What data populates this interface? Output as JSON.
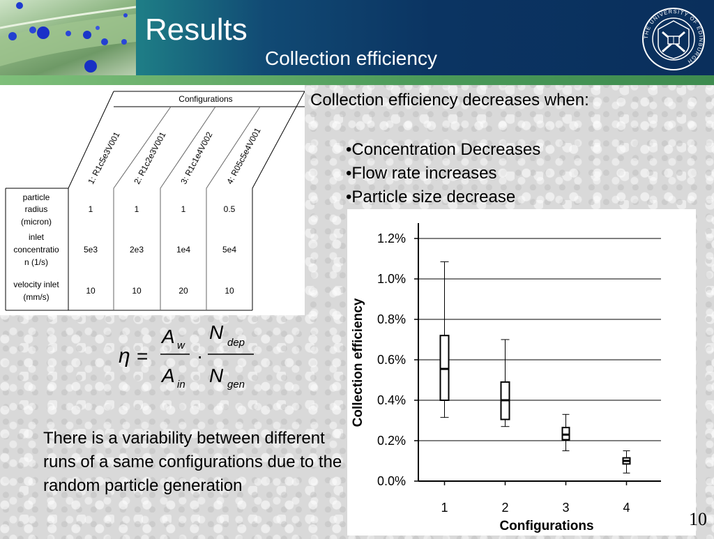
{
  "header": {
    "title": "Results",
    "subtitle": "Collection efficiency",
    "logo_text": "THE UNIVERSITY OF EDINBURGH"
  },
  "table": {
    "group_header": "Configurations",
    "columns": [
      "1: R1c5e3V001",
      "2: R1c2e3V001",
      "3: R1c1e4V002",
      "4: R05c5e4V001"
    ],
    "rows": [
      {
        "label_lines": [
          "particle",
          "radius",
          "(micron)"
        ],
        "values": [
          "1",
          "1",
          "1",
          "0.5"
        ]
      },
      {
        "label_lines": [
          "inlet",
          "concentratio",
          "n (1/s)"
        ],
        "values": [
          "5e3",
          "2e3",
          "1e4",
          "5e4"
        ]
      },
      {
        "label_lines": [
          "velocity inlet",
          "(mm/s)"
        ],
        "values": [
          "10",
          "10",
          "20",
          "10"
        ]
      }
    ]
  },
  "formula": {
    "eta": "η",
    "equals": "=",
    "A": "A",
    "w": "w",
    "in": "in",
    "dot": "·",
    "N": "N",
    "dep": "dep",
    "gen": "gen"
  },
  "text": {
    "heading": "Collection efficiency decreases when:",
    "bullets": [
      "•Concentration Decreases",
      "•Flow rate increases",
      "•Particle size decrease"
    ],
    "note": "There is a variability between different runs of a same configurations due to the random particle generation"
  },
  "page_number": "10",
  "colors": {
    "accent": "#0a2f5c",
    "teal": "#2a8f8a",
    "green_bar": "#4b9a59"
  },
  "chart_data": {
    "type": "box",
    "title": "",
    "xlabel": "Configurations",
    "ylabel": "Collection efficiency",
    "categories": [
      "1",
      "2",
      "3",
      "4"
    ],
    "ylim": [
      0.0,
      1.2
    ],
    "yticks": [
      0.0,
      0.2,
      0.4,
      0.6,
      0.8,
      1.0,
      1.2
    ],
    "ytick_labels": [
      "0.0%",
      "0.2%",
      "0.4%",
      "0.6%",
      "0.8%",
      "1.0%",
      "1.2%"
    ],
    "grid": true,
    "boxes": [
      {
        "category": "1",
        "min": 0.315,
        "q1": 0.4,
        "median": 0.555,
        "q3": 0.72,
        "max": 1.085
      },
      {
        "category": "2",
        "min": 0.27,
        "q1": 0.305,
        "median": 0.4,
        "q3": 0.49,
        "max": 0.7
      },
      {
        "category": "3",
        "min": 0.15,
        "q1": 0.205,
        "median": 0.23,
        "q3": 0.265,
        "max": 0.33
      },
      {
        "category": "4",
        "min": 0.04,
        "q1": 0.085,
        "median": 0.1,
        "q3": 0.115,
        "max": 0.15
      }
    ]
  }
}
